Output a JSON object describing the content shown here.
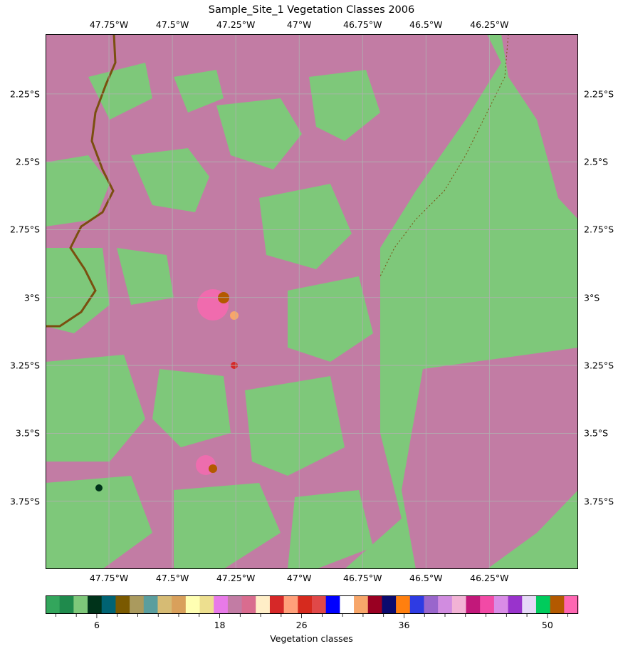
{
  "title": "Sample_Site_1 Vegetation Classes 2006",
  "map": {
    "lon_range": [
      -48.0,
      -45.9
    ],
    "lat_range": [
      -4.0,
      -2.03
    ],
    "background_color": "#7ec87a",
    "deforested_color": "#c27ca4",
    "river_color": "#7a4f10",
    "gridlines": true,
    "lon_ticks": [
      {
        "value": -47.75,
        "label": "47.75°W"
      },
      {
        "value": -47.5,
        "label": "47.5°W"
      },
      {
        "value": -47.25,
        "label": "47.25°W"
      },
      {
        "value": -47.0,
        "label": "47°W"
      },
      {
        "value": -46.75,
        "label": "46.75°W"
      },
      {
        "value": -46.5,
        "label": "46.5°W"
      },
      {
        "value": -46.25,
        "label": "46.25°W"
      }
    ],
    "lat_ticks": [
      {
        "value": -2.25,
        "label": "2.25°S"
      },
      {
        "value": -2.5,
        "label": "2.5°S"
      },
      {
        "value": -2.75,
        "label": "2.75°S"
      },
      {
        "value": -3.0,
        "label": "3°S"
      },
      {
        "value": -3.25,
        "label": "3.25°S"
      },
      {
        "value": -3.5,
        "label": "3.5°S"
      },
      {
        "value": -3.75,
        "label": "3.75°S"
      }
    ]
  },
  "colorbar": {
    "label": "Vegetation classes",
    "range": [
      1,
      53
    ],
    "labeled_ticks": [
      6,
      18,
      26,
      36,
      50
    ],
    "colors": [
      "#33a65c",
      "#1f8a4c",
      "#7ec87a",
      "#00331a",
      "#006373",
      "#7a5900",
      "#aa9a5e",
      "#5a9e9e",
      "#d6bb74",
      "#d9a05b",
      "#ffffb2",
      "#eddf8f",
      "#e87ae8",
      "#c27ca4",
      "#d96c8f",
      "#ffeec7",
      "#d62828",
      "#ffa07a",
      "#d62a1e",
      "#e04848",
      "#0000ff",
      "#ffffff",
      "#f7a66a",
      "#990022",
      "#0b0b6e",
      "#ff7f0e",
      "#2e3be3",
      "#9966cc",
      "#d18ce0",
      "#f2b3d5",
      "#c2187a",
      "#f24aa6",
      "#d98ce6",
      "#9933cc",
      "#e6d9f7",
      "#00cc5c",
      "#b35900",
      "#ff66b2"
    ]
  }
}
